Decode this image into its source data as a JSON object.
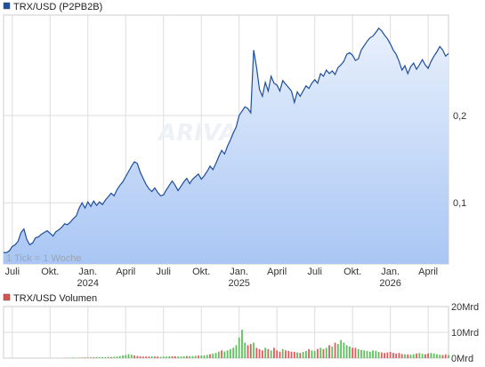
{
  "colors": {
    "line": "#1f4e9c",
    "area_top": "#e8f0fc",
    "area_bottom": "#a9c6f4",
    "grid": "#dddddd",
    "vol_up": "#5cc25c",
    "vol_down": "#e05b5b",
    "legend_price": "#1f4e9c",
    "legend_volume": "#d9534f"
  },
  "watermark": "ARIVA.DE",
  "chart_data": [
    {
      "type": "area",
      "legend": "TRX/USD (P2PB2B)",
      "note": "1 Tick = 1 Woche",
      "ylim": [
        0.03,
        0.315
      ],
      "yticks": [
        0.1,
        0.2
      ],
      "ytick_labels": [
        "0,1",
        "0,2"
      ],
      "x_ticks": [
        {
          "t": 3,
          "label": "Juli",
          "sub": ""
        },
        {
          "t": 16,
          "label": "Okt.",
          "sub": ""
        },
        {
          "t": 29,
          "label": "Jan.",
          "sub": "2024"
        },
        {
          "t": 42,
          "label": "April",
          "sub": ""
        },
        {
          "t": 55,
          "label": "Juli",
          "sub": ""
        },
        {
          "t": 68,
          "label": "Okt.",
          "sub": ""
        },
        {
          "t": 81,
          "label": "Jan.",
          "sub": "2025"
        },
        {
          "t": 94,
          "label": "April",
          "sub": ""
        },
        {
          "t": 107,
          "label": "Juli",
          "sub": ""
        },
        {
          "t": 120,
          "label": "Okt.",
          "sub": ""
        },
        {
          "t": 133,
          "label": "Jan.",
          "sub": "2026"
        },
        {
          "t": 146,
          "label": "April",
          "sub": ""
        }
      ],
      "values": [
        0.043,
        0.043,
        0.045,
        0.05,
        0.052,
        0.056,
        0.066,
        0.07,
        0.058,
        0.052,
        0.054,
        0.06,
        0.061,
        0.064,
        0.066,
        0.068,
        0.065,
        0.062,
        0.067,
        0.069,
        0.072,
        0.076,
        0.075,
        0.078,
        0.082,
        0.085,
        0.094,
        0.1,
        0.094,
        0.101,
        0.096,
        0.102,
        0.097,
        0.101,
        0.098,
        0.103,
        0.107,
        0.111,
        0.108,
        0.115,
        0.12,
        0.124,
        0.13,
        0.136,
        0.142,
        0.147,
        0.145,
        0.135,
        0.128,
        0.121,
        0.116,
        0.113,
        0.117,
        0.112,
        0.108,
        0.109,
        0.115,
        0.12,
        0.125,
        0.12,
        0.114,
        0.119,
        0.124,
        0.128,
        0.122,
        0.127,
        0.13,
        0.133,
        0.127,
        0.131,
        0.136,
        0.142,
        0.138,
        0.145,
        0.153,
        0.16,
        0.156,
        0.165,
        0.172,
        0.18,
        0.187,
        0.2,
        0.205,
        0.21,
        0.208,
        0.203,
        0.275,
        0.255,
        0.23,
        0.222,
        0.238,
        0.228,
        0.245,
        0.237,
        0.235,
        0.228,
        0.24,
        0.236,
        0.232,
        0.228,
        0.215,
        0.227,
        0.222,
        0.228,
        0.234,
        0.231,
        0.237,
        0.241,
        0.237,
        0.248,
        0.245,
        0.252,
        0.248,
        0.251,
        0.247,
        0.255,
        0.258,
        0.262,
        0.27,
        0.272,
        0.269,
        0.263,
        0.265,
        0.275,
        0.28,
        0.285,
        0.289,
        0.291,
        0.295,
        0.3,
        0.297,
        0.292,
        0.288,
        0.282,
        0.275,
        0.27,
        0.262,
        0.252,
        0.257,
        0.248,
        0.256,
        0.26,
        0.253,
        0.258,
        0.264,
        0.258,
        0.254,
        0.262,
        0.268,
        0.273,
        0.279,
        0.275,
        0.268,
        0.271
      ]
    },
    {
      "type": "bar",
      "legend": "TRX/USD Volumen",
      "unit": "Mrd",
      "ylim": [
        0,
        20
      ],
      "yticks": [
        0,
        10,
        20
      ],
      "ytick_labels": [
        "0Mrd",
        "10Mrd",
        "20Mrd"
      ],
      "values": [
        0,
        0,
        0,
        0,
        0,
        0,
        0,
        0,
        0,
        0,
        0,
        0,
        0,
        0,
        0,
        0,
        0,
        0,
        0,
        0,
        0,
        0.1,
        0.1,
        0.1,
        0.2,
        0.1,
        0.2,
        0.2,
        0.3,
        0.2,
        0.3,
        0.3,
        0.4,
        0.3,
        0.4,
        0.4,
        0.5,
        0.4,
        0.5,
        0.6,
        0.8,
        1,
        1.2,
        1.5,
        1.3,
        1,
        0.8,
        0.7,
        0.6,
        0.6,
        0.6,
        0.7,
        0.6,
        0.6,
        0.5,
        0.6,
        0.6,
        0.7,
        0.7,
        0.7,
        0.6,
        0.6,
        0.7,
        0.8,
        0.8,
        0.8,
        0.9,
        1,
        1,
        1.1,
        1.2,
        1.5,
        1.8,
        2,
        2.5,
        3,
        2.6,
        3,
        3.5,
        4,
        5,
        8,
        11,
        6,
        5,
        5.5,
        6,
        4,
        3.5,
        3,
        4,
        3.5,
        3,
        4,
        3,
        2.5,
        3.5,
        3,
        2.8,
        2.5,
        2.4,
        2.2,
        2,
        2.4,
        2.8,
        3.5,
        3,
        2.8,
        3.5,
        4,
        3.5,
        4,
        5,
        4.5,
        6,
        5.5,
        7,
        6,
        5,
        4.5,
        4,
        4,
        3.5,
        3.2,
        3,
        2.8,
        2.5,
        3,
        2.8,
        2.4,
        2.2,
        2,
        2.2,
        2.4,
        2,
        1.8,
        2,
        1.6,
        1.5,
        1.4,
        1.3,
        1.5,
        1.8,
        2,
        1.7,
        1.5,
        1.8,
        2,
        1.8,
        1.5,
        1.3,
        1.2,
        1.4,
        1.2
      ],
      "up": [
        true,
        true,
        true,
        true,
        true,
        true,
        true,
        false,
        false,
        false,
        true,
        true,
        true,
        true,
        true,
        false,
        false,
        true,
        true,
        true,
        true,
        false,
        true,
        true,
        true,
        true,
        true,
        false,
        true,
        false,
        true,
        false,
        true,
        true,
        true,
        true,
        true,
        false,
        true,
        true,
        true,
        true,
        true,
        true,
        true,
        false,
        false,
        false,
        false,
        false,
        false,
        true,
        false,
        false,
        true,
        true,
        true,
        true,
        false,
        false,
        true,
        true,
        true,
        false,
        true,
        true,
        true,
        false,
        true,
        true,
        true,
        false,
        true,
        true,
        true,
        false,
        true,
        true,
        true,
        true,
        true,
        true,
        true,
        true,
        false,
        false,
        true,
        false,
        false,
        false,
        true,
        false,
        true,
        false,
        false,
        false,
        true,
        false,
        false,
        false,
        false,
        true,
        false,
        true,
        true,
        false,
        true,
        true,
        false,
        true,
        false,
        true,
        false,
        true,
        false,
        true,
        true,
        true,
        true,
        true,
        false,
        false,
        true,
        true,
        true,
        true,
        true,
        true,
        true,
        true,
        false,
        false,
        false,
        false,
        false,
        false,
        false,
        false,
        true,
        false,
        true,
        true,
        false,
        true,
        true,
        false,
        false,
        true,
        true,
        true,
        true,
        false,
        false,
        true
      ]
    }
  ]
}
